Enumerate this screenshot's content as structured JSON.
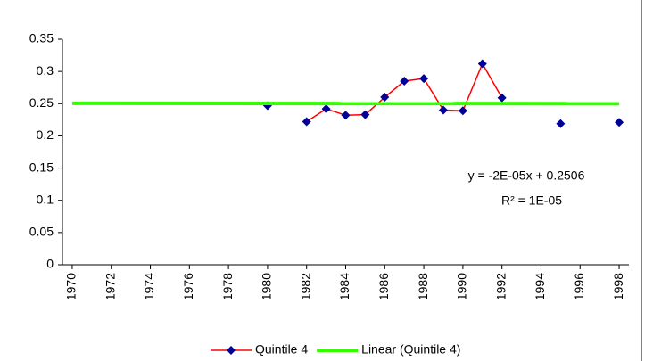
{
  "chart_data": {
    "type": "line",
    "x": [
      1980,
      1981,
      1982,
      1983,
      1984,
      1985,
      1986,
      1987,
      1988,
      1989,
      1990,
      1991,
      1992,
      1993,
      1994,
      1995,
      1996,
      1997,
      1998
    ],
    "series": [
      {
        "name": "Quintile 4",
        "color": "#ff0000",
        "marker_color": "#000099",
        "values": [
          0.247,
          null,
          0.222,
          0.242,
          0.232,
          0.233,
          0.26,
          0.285,
          0.289,
          0.24,
          0.239,
          0.312,
          0.259,
          null,
          null,
          0.219,
          null,
          null,
          0.221
        ]
      },
      {
        "name": "Linear (Quintile 4)",
        "color": "#33ff00",
        "trendline": true,
        "x": [
          1970,
          1998
        ],
        "values": [
          0.2506,
          0.25
        ]
      }
    ],
    "annotations": [
      "y = -2E-05x + 0.2506",
      "R² = 1E-05"
    ],
    "xlim": [
      1969.5,
      1998.5
    ],
    "xticks": [
      1970,
      1972,
      1974,
      1976,
      1978,
      1980,
      1982,
      1984,
      1986,
      1988,
      1990,
      1992,
      1994,
      1996,
      1998
    ],
    "ylim": [
      0,
      0.35
    ],
    "yticks": [
      0,
      0.05,
      0.1,
      0.15,
      0.2,
      0.25,
      0.3,
      0.35
    ],
    "legend": "bottom"
  }
}
